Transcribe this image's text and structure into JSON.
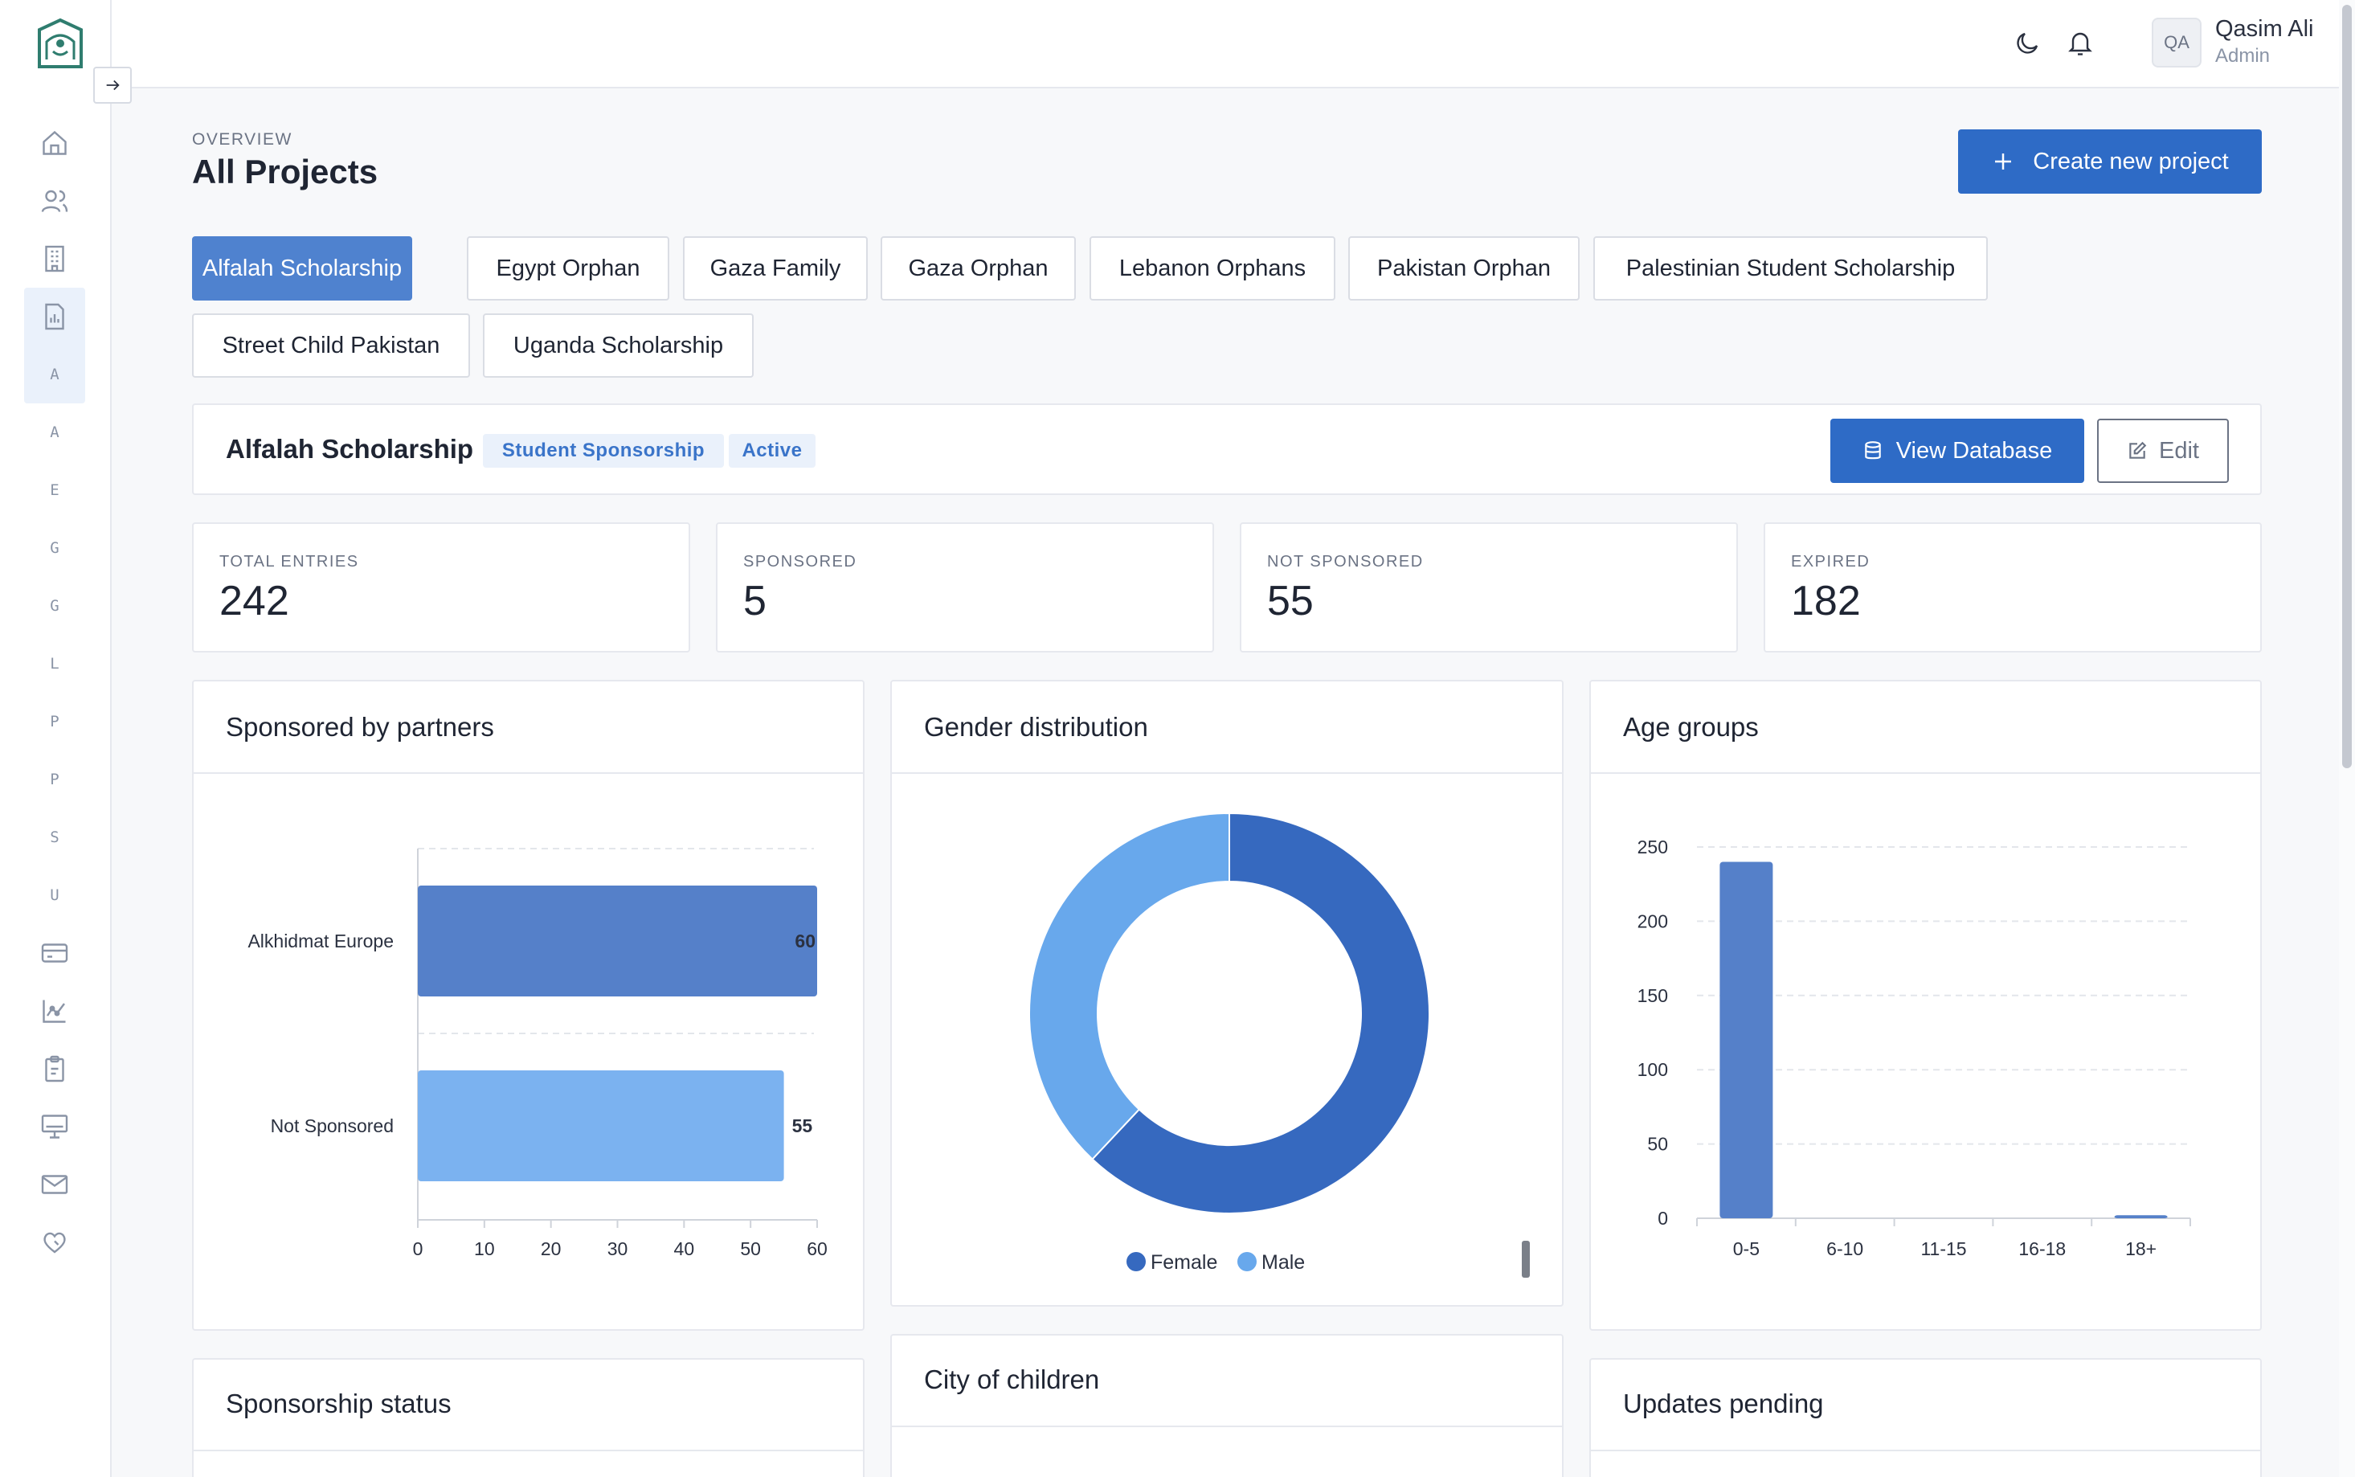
{
  "header": {
    "user_initials": "QA",
    "user_name": "Qasim Ali",
    "user_role": "Admin"
  },
  "sidebar": {
    "letters": [
      "A",
      "A",
      "E",
      "G",
      "G",
      "L",
      "P",
      "P",
      "S",
      "U"
    ]
  },
  "page": {
    "overline": "OVERVIEW",
    "title": "All Projects",
    "create_label": "Create new project"
  },
  "tabs": [
    "Alfalah Scholarship",
    "Egypt Orphan",
    "Gaza Family",
    "Gaza Orphan",
    "Lebanon Orphans",
    "Pakistan Orphan",
    "Palestinian Student Scholarship",
    "Street Child Pakistan",
    "Uganda Scholarship"
  ],
  "project": {
    "name": "Alfalah Scholarship",
    "type_badge": "Student Sponsorship",
    "status_badge": "Active",
    "view_db_label": "View Database",
    "edit_label": "Edit"
  },
  "stats": [
    {
      "label": "TOTAL ENTRIES",
      "value": "242"
    },
    {
      "label": "SPONSORED",
      "value": "5"
    },
    {
      "label": "NOT SPONSORED",
      "value": "55"
    },
    {
      "label": "EXPIRED",
      "value": "182"
    }
  ],
  "panels": {
    "partners_title": "Sponsored by partners",
    "gender_title": "Gender distribution",
    "age_title": "Age groups",
    "status_title": "Sponsorship status",
    "city_title": "City of children",
    "updates_title": "Updates pending"
  },
  "colors": {
    "primary": "#2e6bc6",
    "tab_selected": "#4f82cf",
    "bar_dark": "#5580c9",
    "bar_light": "#7bb2f0",
    "pie_female": "#3669bf",
    "pie_male": "#68a8ec"
  },
  "chart_data": [
    {
      "type": "bar",
      "orientation": "horizontal",
      "categories": [
        "Alkhidmat Europe",
        "Not Sponsored"
      ],
      "values": [
        60,
        55
      ],
      "xlim": [
        0,
        60
      ],
      "xticks": [
        0,
        10,
        20,
        30,
        40,
        50,
        60
      ],
      "grid": true
    },
    {
      "type": "pie",
      "donut": true,
      "labels": [
        "Female",
        "Male"
      ],
      "values": [
        62,
        38
      ],
      "legend": "bottom"
    },
    {
      "type": "bar",
      "categories": [
        "0-5",
        "6-10",
        "11-15",
        "16-18",
        "18+"
      ],
      "values": [
        240,
        0,
        0,
        0,
        2
      ],
      "ylim": [
        0,
        250
      ],
      "yticks": [
        0,
        50,
        100,
        150,
        200,
        250
      ],
      "grid": true
    }
  ]
}
